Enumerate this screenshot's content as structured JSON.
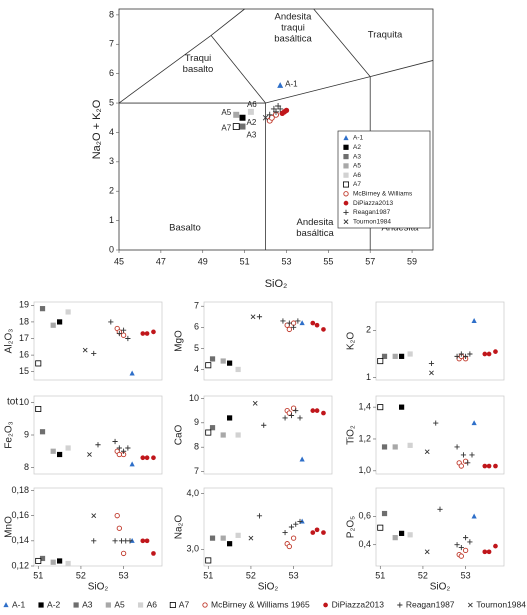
{
  "chart_data": [
    {
      "type": "scatter",
      "xlabel": "SiO₂",
      "ylabel": "Na₂O + K₂O",
      "xlim": [
        45,
        60
      ],
      "ylim": [
        0,
        8.2
      ],
      "xticks": [
        45,
        47,
        49,
        51,
        53,
        55,
        57,
        59
      ],
      "yticks": [
        0,
        1,
        2,
        3,
        4,
        5,
        6,
        7,
        8
      ],
      "fields": [
        [
          "Traqui",
          "basalto"
        ],
        [
          "Andesita",
          "traqui",
          "basáltica"
        ],
        [
          "Traquita"
        ],
        [
          "Basalto"
        ],
        [
          "Andesita",
          "basáltica"
        ],
        [
          "Andesita"
        ]
      ],
      "legend": "right",
      "series": [
        {
          "name": "A-1",
          "color": "#2e6fc9",
          "marker": "triangle",
          "point_label": true,
          "x": [
            52.7
          ],
          "y": [
            5.6
          ]
        },
        {
          "name": "A2",
          "color": "#000000",
          "marker": "square",
          "point_label": true,
          "x": [
            50.9
          ],
          "y": [
            4.5
          ]
        },
        {
          "name": "A3",
          "color": "#6e6e6e",
          "marker": "square",
          "point_label": true,
          "x": [
            50.9
          ],
          "y": [
            4.2
          ]
        },
        {
          "name": "A5",
          "color": "#a8a8a8",
          "marker": "square",
          "point_label": true,
          "x": [
            50.6
          ],
          "y": [
            4.6
          ]
        },
        {
          "name": "A6",
          "color": "#d2d2d2",
          "marker": "square",
          "point_label": true,
          "x": [
            51.3
          ],
          "y": [
            4.7
          ]
        },
        {
          "name": "A7",
          "color": "#000000",
          "marker": "square-open",
          "point_label": true,
          "x": [
            50.6
          ],
          "y": [
            4.2
          ]
        },
        {
          "name": "McBirney & Williams",
          "color": "#c0392b",
          "marker": "circle-open",
          "x": [
            52.2,
            52.3,
            52.5
          ],
          "y": [
            4.4,
            4.5,
            4.6
          ]
        },
        {
          "name": "DiPiazza2013",
          "color": "#c0161b",
          "marker": "circle",
          "x": [
            52.8,
            52.9,
            53.0
          ],
          "y": [
            4.65,
            4.7,
            4.75
          ]
        },
        {
          "name": "Reagan1987",
          "color": "#333333",
          "marker": "plus",
          "x": [
            52.2,
            52.4,
            52.5,
            52.6,
            52.7
          ],
          "y": [
            4.6,
            4.8,
            4.7,
            4.9,
            4.8
          ]
        },
        {
          "name": "Tournon1984",
          "color": "#333333",
          "marker": "cross",
          "x": [
            52.0
          ],
          "y": [
            4.5
          ]
        }
      ]
    },
    {
      "type": "scatter",
      "ylabel": "Al₂O₃",
      "xlim": [
        50.9,
        53.9
      ],
      "ylim": [
        14.5,
        19.2
      ],
      "yticks": [
        15,
        16,
        17,
        18,
        19
      ],
      "series": [
        {
          "x": [
            53.2
          ],
          "y": [
            14.9
          ]
        },
        {
          "x": [
            51.5
          ],
          "y": [
            18.0
          ]
        },
        {
          "x": [
            51.1
          ],
          "y": [
            18.8
          ]
        },
        {
          "x": [
            51.35
          ],
          "y": [
            17.8
          ]
        },
        {
          "x": [
            51.7
          ],
          "y": [
            18.6
          ]
        },
        {
          "x": [
            51.0
          ],
          "y": [
            15.5
          ]
        },
        {
          "x": [
            52.85,
            52.9,
            53.0
          ],
          "y": [
            17.6,
            17.4,
            17.2
          ]
        },
        {
          "x": [
            53.45,
            53.55,
            53.7
          ],
          "y": [
            17.3,
            17.3,
            17.4
          ]
        },
        {
          "x": [
            52.3,
            52.7,
            52.9,
            53.0,
            53.1
          ],
          "y": [
            16.1,
            18.0,
            17.3,
            17.5,
            17.0
          ]
        },
        {
          "x": [
            52.1
          ],
          "y": [
            16.3
          ]
        }
      ]
    },
    {
      "type": "scatter",
      "ylabel": "MgO",
      "xlim": [
        50.9,
        53.9
      ],
      "ylim": [
        3.5,
        7.2
      ],
      "yticks": [
        4,
        5,
        6,
        7
      ],
      "series": [
        {
          "x": [
            53.2
          ],
          "y": [
            6.2
          ]
        },
        {
          "x": [
            51.5
          ],
          "y": [
            4.3
          ]
        },
        {
          "x": [
            51.1
          ],
          "y": [
            4.5
          ]
        },
        {
          "x": [
            51.35
          ],
          "y": [
            4.4
          ]
        },
        {
          "x": [
            51.7
          ],
          "y": [
            4.0
          ]
        },
        {
          "x": [
            51.0
          ],
          "y": [
            4.2
          ]
        },
        {
          "x": [
            52.85,
            52.9,
            53.0
          ],
          "y": [
            6.1,
            5.9,
            6.2
          ]
        },
        {
          "x": [
            53.45,
            53.55,
            53.7
          ],
          "y": [
            6.2,
            6.1,
            5.9
          ]
        },
        {
          "x": [
            52.2,
            52.75,
            52.9,
            53.0,
            53.1
          ],
          "y": [
            6.5,
            6.3,
            6.2,
            6.0,
            6.3
          ]
        },
        {
          "x": [
            52.05
          ],
          "y": [
            6.5
          ]
        }
      ]
    },
    {
      "type": "scatter",
      "ylabel": "K₂O",
      "xlim": [
        50.9,
        53.9
      ],
      "ylim": [
        0.95,
        2.6
      ],
      "yticks": [
        1,
        2
      ],
      "series": [
        {
          "x": [
            53.2
          ],
          "y": [
            2.2
          ]
        },
        {
          "x": [
            51.5
          ],
          "y": [
            1.45
          ]
        },
        {
          "x": [
            51.1
          ],
          "y": [
            1.45
          ]
        },
        {
          "x": [
            51.35
          ],
          "y": [
            1.45
          ]
        },
        {
          "x": [
            51.7
          ],
          "y": [
            1.5
          ]
        },
        {
          "x": [
            51.0
          ],
          "y": [
            1.35
          ]
        },
        {
          "x": [
            52.85,
            52.9,
            53.0
          ],
          "y": [
            1.4,
            1.45,
            1.4
          ]
        },
        {
          "x": [
            53.45,
            53.55,
            53.7
          ],
          "y": [
            1.5,
            1.5,
            1.55
          ]
        },
        {
          "x": [
            52.2,
            52.8,
            52.9,
            53.0,
            53.1
          ],
          "y": [
            1.3,
            1.45,
            1.5,
            1.45,
            1.5
          ]
        },
        {
          "x": [
            52.2
          ],
          "y": [
            1.1
          ]
        }
      ]
    },
    {
      "type": "scatter",
      "ylabel": "Fe₂O₃",
      "ylabel_note": "tot",
      "xlim": [
        50.9,
        53.9
      ],
      "ylim": [
        7.8,
        10.2
      ],
      "yticks": [
        8,
        9,
        10
      ],
      "series": [
        {
          "x": [
            53.2
          ],
          "y": [
            8.1
          ]
        },
        {
          "x": [
            51.5
          ],
          "y": [
            8.4
          ]
        },
        {
          "x": [
            51.1
          ],
          "y": [
            9.1
          ]
        },
        {
          "x": [
            51.35
          ],
          "y": [
            8.5
          ]
        },
        {
          "x": [
            51.7
          ],
          "y": [
            8.6
          ]
        },
        {
          "x": [
            51.0
          ],
          "y": [
            9.8
          ]
        },
        {
          "x": [
            52.85,
            52.9,
            53.0
          ],
          "y": [
            8.5,
            8.4,
            8.4
          ]
        },
        {
          "x": [
            53.45,
            53.55,
            53.7
          ],
          "y": [
            8.3,
            8.3,
            8.3
          ]
        },
        {
          "x": [
            52.4,
            52.8,
            52.9,
            53.0,
            53.1
          ],
          "y": [
            8.7,
            8.8,
            8.6,
            8.5,
            8.6
          ]
        },
        {
          "x": [
            52.2
          ],
          "y": [
            8.4
          ]
        }
      ]
    },
    {
      "type": "scatter",
      "ylabel": "CaO",
      "xlim": [
        50.9,
        53.9
      ],
      "ylim": [
        6.9,
        10.1
      ],
      "yticks": [
        7,
        8,
        9,
        10
      ],
      "series": [
        {
          "x": [
            53.2
          ],
          "y": [
            7.5
          ]
        },
        {
          "x": [
            51.5
          ],
          "y": [
            9.2
          ]
        },
        {
          "x": [
            51.1
          ],
          "y": [
            8.8
          ]
        },
        {
          "x": [
            51.35
          ],
          "y": [
            8.5
          ]
        },
        {
          "x": [
            51.7
          ],
          "y": [
            8.5
          ]
        },
        {
          "x": [
            51.0
          ],
          "y": [
            8.6
          ]
        },
        {
          "x": [
            52.85,
            52.9,
            53.0
          ],
          "y": [
            9.5,
            9.4,
            9.6
          ]
        },
        {
          "x": [
            53.45,
            53.55,
            53.7
          ],
          "y": [
            9.5,
            9.5,
            9.4
          ]
        },
        {
          "x": [
            52.3,
            52.8,
            52.95,
            53.05,
            53.15
          ],
          "y": [
            8.9,
            9.2,
            9.3,
            9.5,
            9.2
          ]
        },
        {
          "x": [
            52.1
          ],
          "y": [
            9.8
          ]
        }
      ]
    },
    {
      "type": "scatter",
      "ylabel": "TiO₂",
      "xlim": [
        50.9,
        53.9
      ],
      "ylim": [
        0.98,
        1.47
      ],
      "yticks": [
        {
          "value": 1.0,
          "label": "1,0"
        },
        {
          "value": 1.2,
          "label": "1,2"
        },
        {
          "value": 1.4,
          "label": "1,4"
        }
      ],
      "series": [
        {
          "x": [
            53.2
          ],
          "y": [
            1.3
          ]
        },
        {
          "x": [
            51.5
          ],
          "y": [
            1.4
          ]
        },
        {
          "x": [
            51.1
          ],
          "y": [
            1.15
          ]
        },
        {
          "x": [
            51.35
          ],
          "y": [
            1.15
          ]
        },
        {
          "x": [
            51.7
          ],
          "y": [
            1.16
          ]
        },
        {
          "x": [
            51.0
          ],
          "y": [
            1.4
          ]
        },
        {
          "x": [
            52.85,
            52.9,
            53.0
          ],
          "y": [
            1.05,
            1.03,
            1.06
          ]
        },
        {
          "x": [
            53.45,
            53.55,
            53.7
          ],
          "y": [
            1.03,
            1.03,
            1.03
          ]
        },
        {
          "x": [
            52.3,
            52.8,
            52.95,
            53.05,
            53.15
          ],
          "y": [
            1.3,
            1.15,
            1.1,
            1.05,
            1.1
          ]
        },
        {
          "x": [
            52.1
          ],
          "y": [
            1.12
          ]
        }
      ]
    },
    {
      "type": "scatter",
      "ylabel": "MnO",
      "xlabel": "SiO₂",
      "xlim": [
        50.9,
        53.9
      ],
      "ylim": [
        0.12,
        0.182
      ],
      "xticks": [
        51,
        52,
        53
      ],
      "yticks": [
        {
          "value": 0.12,
          "label": "0,12"
        },
        {
          "value": 0.14,
          "label": "0,14"
        },
        {
          "value": 0.16,
          "label": "0,16"
        },
        {
          "value": 0.18,
          "label": "0,18"
        }
      ],
      "series": [
        {
          "x": [
            53.2
          ],
          "y": [
            0.14
          ]
        },
        {
          "x": [
            51.5
          ],
          "y": [
            0.124
          ]
        },
        {
          "x": [
            51.1
          ],
          "y": [
            0.126
          ]
        },
        {
          "x": [
            51.35
          ],
          "y": [
            0.123
          ]
        },
        {
          "x": [
            51.7
          ],
          "y": [
            0.122
          ]
        },
        {
          "x": [
            51.0
          ],
          "y": [
            0.124
          ]
        },
        {
          "x": [
            52.85,
            52.9,
            53.0
          ],
          "y": [
            0.16,
            0.15,
            0.13
          ]
        },
        {
          "x": [
            53.45,
            53.55,
            53.7
          ],
          "y": [
            0.14,
            0.14,
            0.13
          ]
        },
        {
          "x": [
            52.3,
            52.8,
            52.95,
            53.05,
            53.15
          ],
          "y": [
            0.14,
            0.14,
            0.14,
            0.14,
            0.14
          ]
        },
        {
          "x": [
            52.3
          ],
          "y": [
            0.16
          ]
        }
      ]
    },
    {
      "type": "scatter",
      "ylabel": "Na₂O",
      "xlabel": "SiO₂",
      "xlim": [
        50.9,
        53.9
      ],
      "ylim": [
        2.7,
        4.1
      ],
      "xticks": [
        51,
        52,
        53
      ],
      "yticks": [
        {
          "value": 3.0,
          "label": "3,0"
        },
        {
          "value": 4.0,
          "label": "4,0"
        }
      ],
      "series": [
        {
          "x": [
            53.2
          ],
          "y": [
            3.5
          ]
        },
        {
          "x": [
            51.5
          ],
          "y": [
            3.1
          ]
        },
        {
          "x": [
            51.1
          ],
          "y": [
            3.2
          ]
        },
        {
          "x": [
            51.35
          ],
          "y": [
            3.2
          ]
        },
        {
          "x": [
            51.7
          ],
          "y": [
            3.25
          ]
        },
        {
          "x": [
            51.0
          ],
          "y": [
            2.8
          ]
        },
        {
          "x": [
            52.85,
            52.9,
            53.0
          ],
          "y": [
            3.1,
            3.05,
            3.2
          ]
        },
        {
          "x": [
            53.45,
            53.55,
            53.7
          ],
          "y": [
            3.3,
            3.35,
            3.3
          ]
        },
        {
          "x": [
            52.2,
            52.8,
            52.95,
            53.05,
            53.15
          ],
          "y": [
            3.6,
            3.3,
            3.4,
            3.45,
            3.5
          ]
        },
        {
          "x": [
            52.0
          ],
          "y": [
            3.2
          ]
        }
      ]
    },
    {
      "type": "scatter",
      "ylabel": "P₂O₅",
      "xlabel": "SiO₂",
      "xlim": [
        50.9,
        53.9
      ],
      "ylim": [
        0.25,
        0.8
      ],
      "xticks": [
        51,
        52,
        53
      ],
      "yticks": [
        {
          "value": 0.4,
          "label": "0,4"
        },
        {
          "value": 0.6,
          "label": "0,6"
        }
      ],
      "series": [
        {
          "x": [
            53.2
          ],
          "y": [
            0.6
          ]
        },
        {
          "x": [
            51.5
          ],
          "y": [
            0.48
          ]
        },
        {
          "x": [
            51.1
          ],
          "y": [
            0.62
          ]
        },
        {
          "x": [
            51.35
          ],
          "y": [
            0.45
          ]
        },
        {
          "x": [
            51.7
          ],
          "y": [
            0.47
          ]
        },
        {
          "x": [
            51.0
          ],
          "y": [
            0.52
          ]
        },
        {
          "x": [
            52.85,
            52.9,
            53.0
          ],
          "y": [
            0.33,
            0.32,
            0.36
          ]
        },
        {
          "x": [
            53.45,
            53.55,
            53.7
          ],
          "y": [
            0.35,
            0.35,
            0.39
          ]
        },
        {
          "x": [
            52.4,
            52.8,
            52.9,
            53.0,
            53.1
          ],
          "y": [
            0.65,
            0.4,
            0.38,
            0.45,
            0.42
          ]
        },
        {
          "x": [
            52.1
          ],
          "y": [
            0.35
          ]
        }
      ]
    }
  ],
  "shared_legend": {
    "entries": [
      "A-1",
      "A-2",
      "A3",
      "A5",
      "A6",
      "A7",
      "McBirney & Williams 1965",
      "DiPiazza2013",
      "Reagan1987",
      "Tournon1984"
    ]
  }
}
